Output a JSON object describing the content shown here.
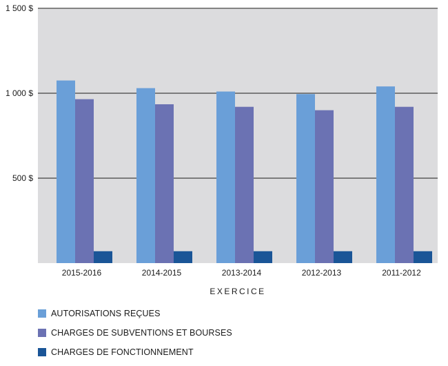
{
  "chart_data": {
    "type": "bar",
    "title": "",
    "xlabel": "EXERCICE",
    "ylabel": "",
    "ylim": [
      0,
      1500
    ],
    "yticks": [
      {
        "value": 500,
        "label": "500 $"
      },
      {
        "value": 1000,
        "label": "1 000 $"
      },
      {
        "value": 1500,
        "label": "1 500 $"
      }
    ],
    "categories": [
      "2015-2016",
      "2014-2015",
      "2013-2014",
      "2012-2013",
      "2011-2012"
    ],
    "series": [
      {
        "name": "AUTORISATIONS REÇUES",
        "color": "#6a9fd8",
        "values": [
          1075,
          1030,
          1010,
          995,
          1040
        ]
      },
      {
        "name": "CHARGES DE SUBVENTIONS ET BOURSES",
        "color": "#6b72b3",
        "values": [
          965,
          935,
          920,
          900,
          920
        ]
      },
      {
        "name": "CHARGES DE FONCTIONNEMENT",
        "color": "#1a5597",
        "values": [
          70,
          70,
          70,
          70,
          70
        ]
      }
    ],
    "grid": true,
    "legend_position": "bottom-left",
    "background": "#dcdcde"
  }
}
